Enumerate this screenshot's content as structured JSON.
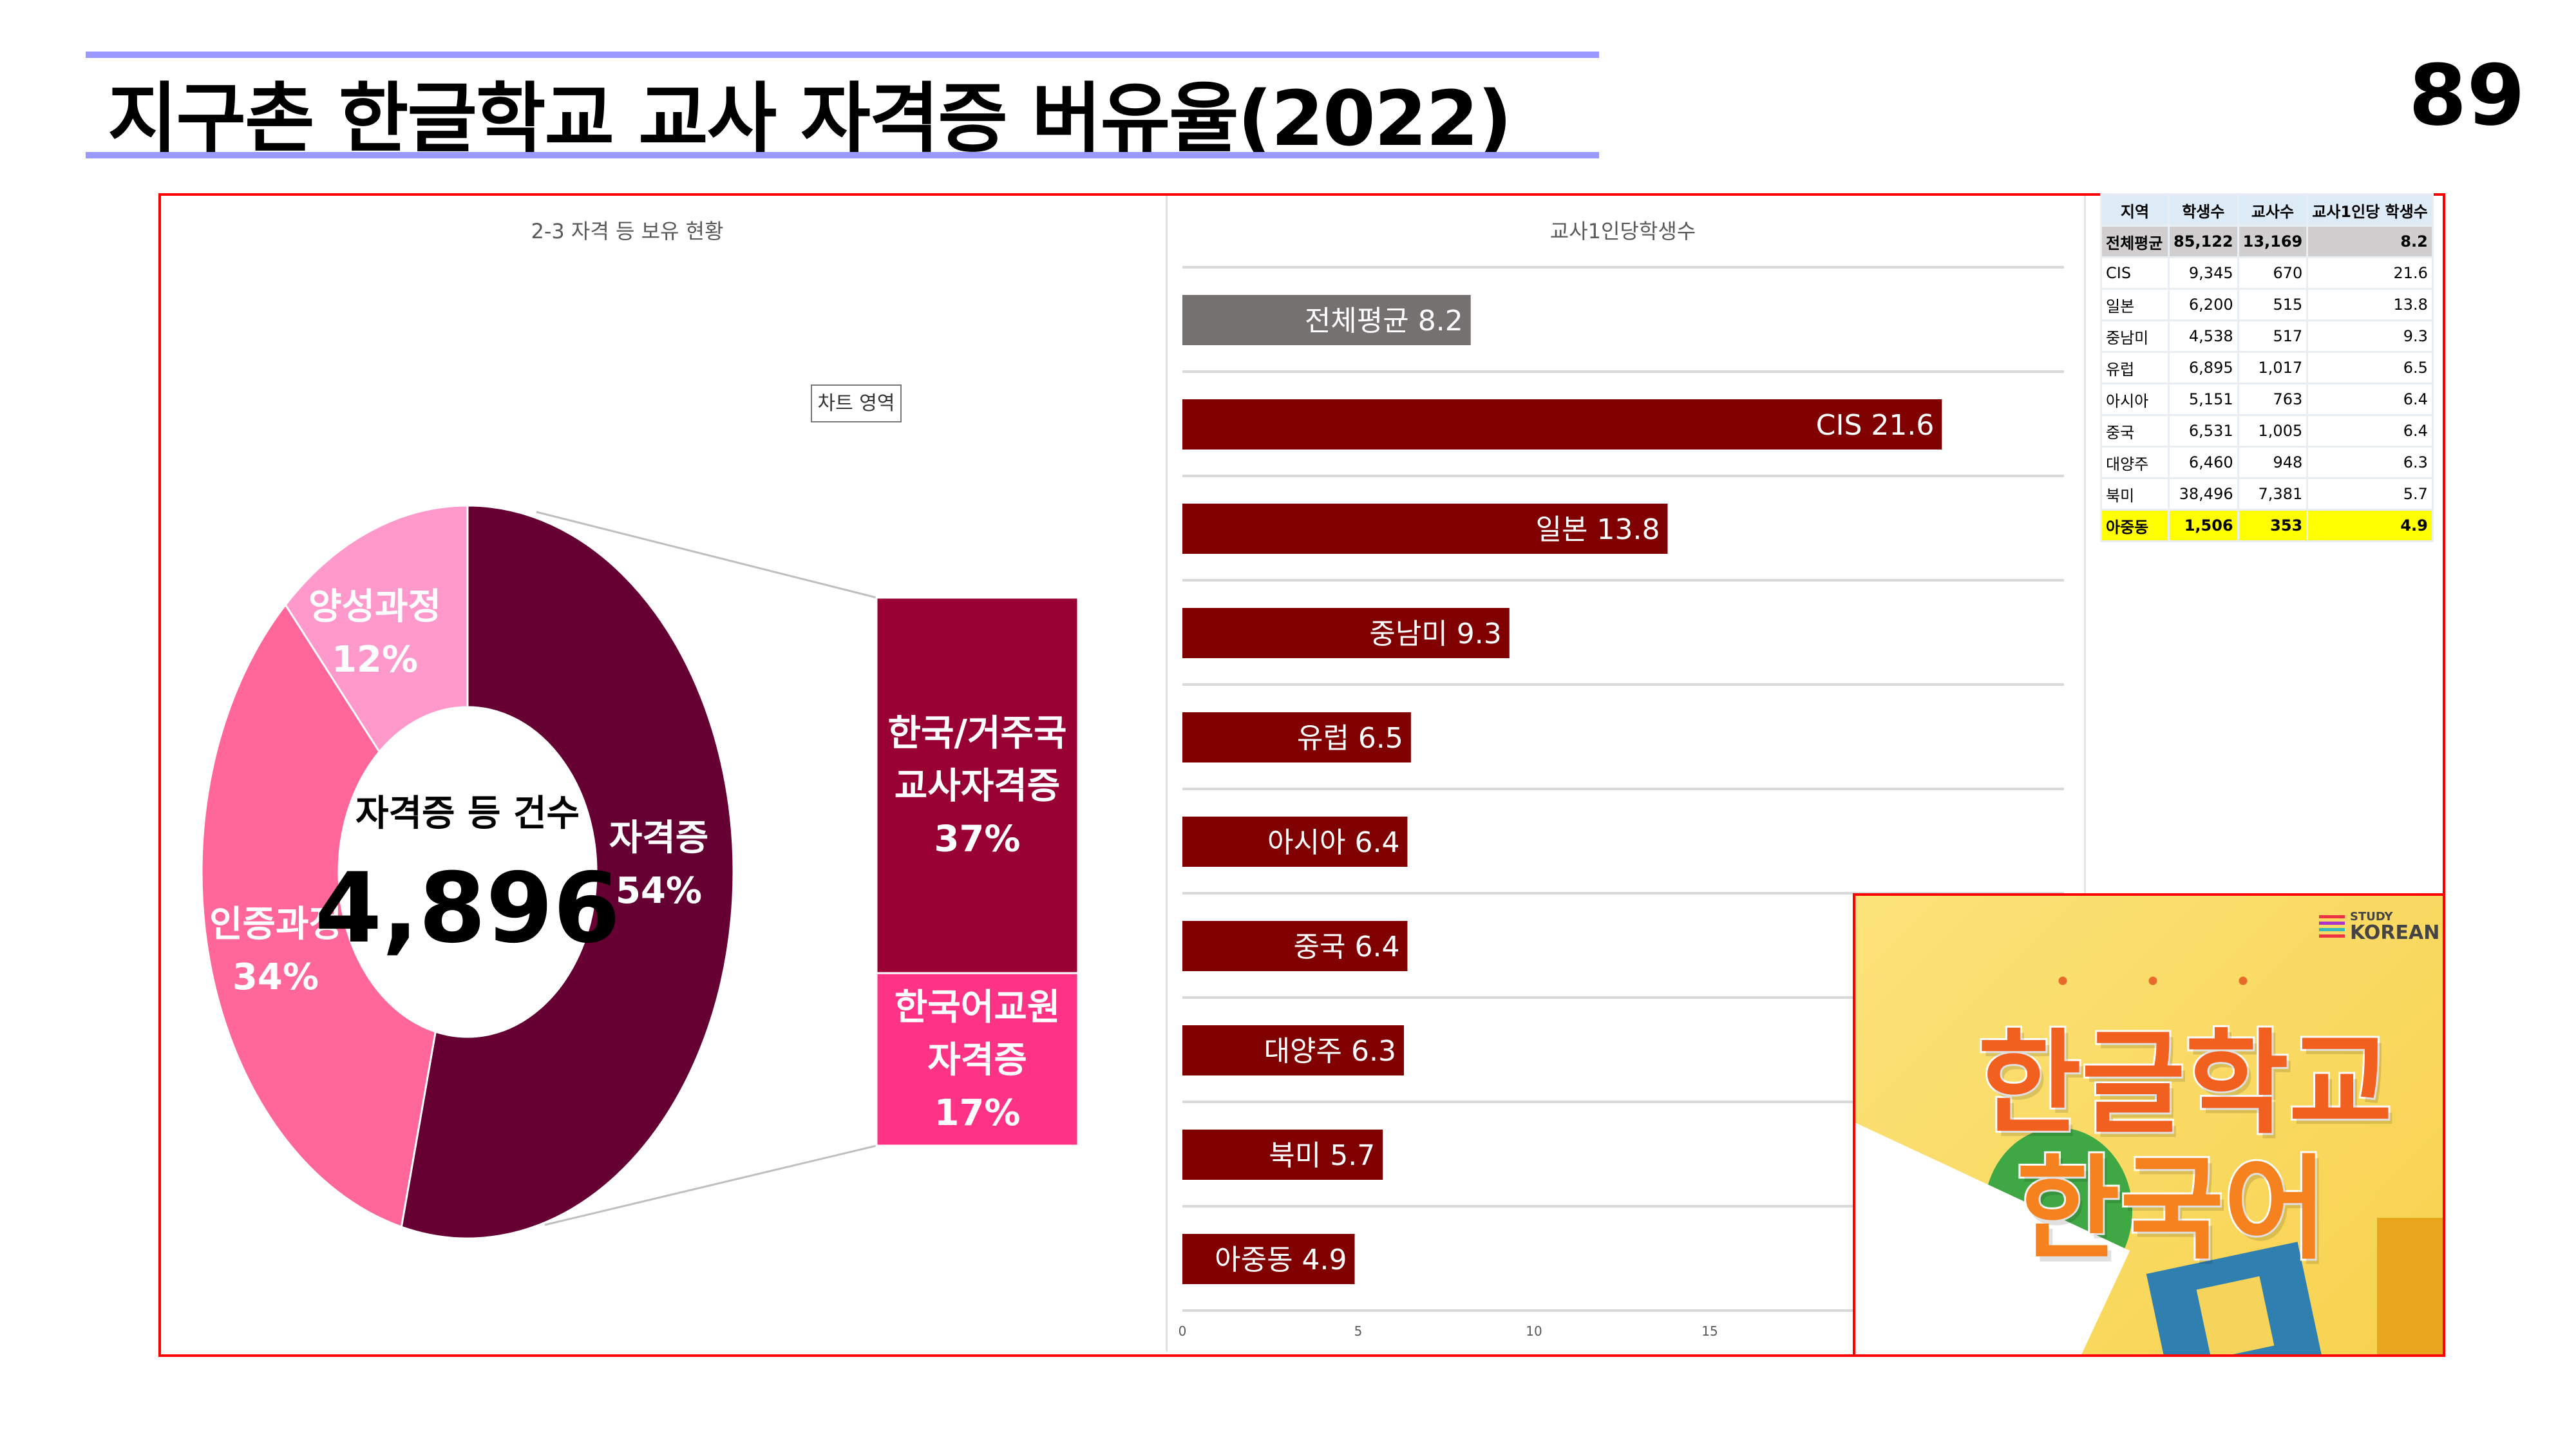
{
  "header": {
    "title": "지구촌 한글학교 교사 자격증 버유율(2022)",
    "page_number": "89"
  },
  "colors": {
    "accent_line": "#9999ff",
    "frame": "#ff0000",
    "bar_main": "#800000",
    "bar_avg": "#757171",
    "highlight": "#ffff00"
  },
  "chart_data": [
    {
      "type": "pie",
      "title": "2-3 자격 등 보유 현황",
      "tooltip": "차트 영역",
      "center_label": "자격증 등 건수",
      "center_value": "4,896",
      "slices": [
        {
          "label": "자격증",
          "value": 54,
          "display": "54%",
          "color": "#660033"
        },
        {
          "label": "인증과정",
          "value": 34,
          "display": "34%",
          "color": "#ff6699"
        },
        {
          "label": "양성과정",
          "value": 12,
          "display": "12%",
          "color": "#ff99cc"
        }
      ],
      "breakdown_of": "자격증",
      "breakdown": [
        {
          "label_lines": [
            "한국/거주국",
            "교사자격증"
          ],
          "value": 37,
          "display": "37%",
          "color": "#990033"
        },
        {
          "label_lines": [
            "한국어교원",
            "자격증"
          ],
          "value": 17,
          "display": "17%",
          "color": "#ff3385"
        }
      ]
    },
    {
      "type": "bar",
      "orientation": "horizontal",
      "title": "교사1인당학생수",
      "categories": [
        "전체평균",
        "CIS",
        "일본",
        "중남미",
        "유럽",
        "아시아",
        "중국",
        "대양주",
        "북미",
        "아중동"
      ],
      "values": [
        8.2,
        21.6,
        13.8,
        9.3,
        6.5,
        6.4,
        6.4,
        6.3,
        5.7,
        4.9
      ],
      "xticks": [
        "0",
        "5",
        "10",
        "15"
      ],
      "xlim": [
        0,
        25
      ],
      "grid": true
    }
  ],
  "table": {
    "headers": [
      "지역",
      "학생수",
      "교사수",
      "교사1인당 학생수"
    ],
    "rows": [
      [
        "전체평균",
        "85,122",
        "13,169",
        "8.2"
      ],
      [
        "CIS",
        "9,345",
        "670",
        "21.6"
      ],
      [
        "일본",
        "6,200",
        "515",
        "13.8"
      ],
      [
        "중남미",
        "4,538",
        "517",
        "9.3"
      ],
      [
        "유럽",
        "6,895",
        "1,017",
        "6.5"
      ],
      [
        "아시아",
        "5,151",
        "763",
        "6.4"
      ],
      [
        "중국",
        "6,531",
        "1,005",
        "6.4"
      ],
      [
        "대양주",
        "6,460",
        "948",
        "6.3"
      ],
      [
        "북미",
        "38,496",
        "7,381",
        "5.7"
      ],
      [
        "아중동",
        "1,506",
        "353",
        "4.9"
      ]
    ]
  },
  "promo": {
    "line1": "한글학교",
    "line2": "한국어",
    "logo_top": "STUDY",
    "logo_bottom": "KOREAN"
  }
}
